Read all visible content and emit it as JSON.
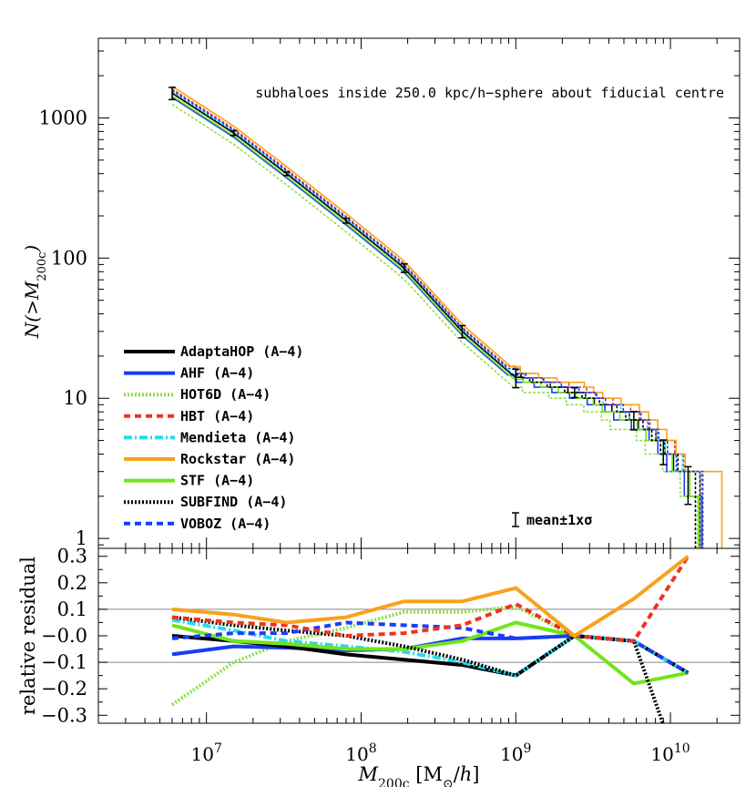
{
  "chart_data": [
    {
      "type": "line",
      "xlog": true,
      "ylog": true,
      "xlim": [
        2000000.0,
        28000000000.0
      ],
      "ylim": [
        0.85,
        3700
      ],
      "xticks": [
        {
          "v": 10000000.0,
          "b": "10",
          "e": "7"
        },
        {
          "v": 100000000.0,
          "b": "10",
          "e": "8"
        },
        {
          "v": 1000000000.0,
          "b": "10",
          "e": "9"
        },
        {
          "v": 10000000000.0,
          "b": "10",
          "e": "10"
        }
      ],
      "yticks": [
        {
          "v": 1,
          "label": "1"
        },
        {
          "v": 10,
          "label": "10"
        },
        {
          "v": 100,
          "label": "100"
        },
        {
          "v": 1000,
          "label": "1000"
        }
      ],
      "ylabel": "N(>M200c)",
      "annotation": "subhaloes inside 250.0 kpc/h−sphere about fiducial centre",
      "errorbar_key": "mean±1xσ",
      "legend_placement": "bottom-left",
      "series": [
        {
          "name": "AdaptaHOP (A−4)",
          "color": "#000000",
          "dash": "",
          "width": 4
        },
        {
          "name": "AHF (A−4)",
          "color": "#1a3df5",
          "dash": "",
          "width": 4
        },
        {
          "name": "HOT6D (A−4)",
          "color": "#8ce04a",
          "dash": "2,2",
          "width": 4
        },
        {
          "name": "HBT (A−4)",
          "color": "#f0321e",
          "dash": "7,5",
          "width": 4
        },
        {
          "name": "Mendieta (A−4)",
          "color": "#22dcec",
          "dash": "9,3,2,3",
          "width": 4
        },
        {
          "name": "Rockstar (A−4)",
          "color": "#f7a21c",
          "dash": "",
          "width": 4
        },
        {
          "name": "STF (A−4)",
          "color": "#72e41c",
          "dash": "",
          "width": 4
        },
        {
          "name": "SUBFIND (A−4)",
          "color": "#000000",
          "dash": "2,2",
          "width": 4
        },
        {
          "name": "VOBOZ (A−4)",
          "color": "#1a3df5",
          "dash": "7,5",
          "width": 4
        }
      ],
      "mean_curve": {
        "x": [
          6000000.0,
          15000000.0,
          33000000.0,
          80000000.0,
          190000000.0,
          450000000.0,
          1000000000.0,
          2400000000.0,
          5800000000.0,
          9000000000.0,
          13000000000.0
        ],
        "y": [
          1500,
          780,
          400,
          185,
          85,
          30,
          14,
          11,
          7,
          4.2,
          2.5
        ]
      },
      "curve_end_x": [
        15500000000.0,
        16000000000.0,
        15000000000.0,
        15800000000.0,
        15500000000.0,
        21500000000.0,
        15200000000.0,
        14500000000.0,
        16200000000.0
      ],
      "errorbars": {
        "x": [
          6000000.0,
          15000000.0,
          33000000.0,
          80000000.0,
          190000000.0,
          450000000.0,
          1000000000.0,
          2400000000.0,
          5800000000.0,
          9000000000.0,
          13000000000.0
        ],
        "y": [
          1500,
          780,
          400,
          185,
          85,
          30,
          14,
          11,
          7,
          4.2,
          2.5
        ],
        "frac": [
          0.1,
          0.04,
          0.03,
          0.04,
          0.07,
          0.1,
          0.15,
          0.08,
          0.15,
          0.2,
          0.3
        ]
      }
    },
    {
      "type": "line",
      "xlog": true,
      "xlim": [
        2000000.0,
        28000000000.0
      ],
      "ylim": [
        -0.33,
        0.33
      ],
      "ylabel": "relative residual",
      "xlabel": "M200c [M⊙/h]",
      "yticks": [
        {
          "v": 0.3,
          "label": "0.3"
        },
        {
          "v": 0.2,
          "label": "0.2"
        },
        {
          "v": 0.1,
          "label": "0.1"
        },
        {
          "v": 0.0,
          "label": "−0.0"
        },
        {
          "v": -0.1,
          "label": "−0.1"
        },
        {
          "v": -0.2,
          "label": "−0.2"
        },
        {
          "v": -0.3,
          "label": "−0.3"
        }
      ],
      "ref_lines": [
        0.1,
        -0.1
      ],
      "x": [
        6000000.0,
        15000000.0,
        33000000.0,
        80000000.0,
        190000000.0,
        450000000.0,
        1000000000.0,
        2400000000.0,
        5800000000.0,
        13000000000.0
      ],
      "series": [
        {
          "name": "HOT6D (A−4)",
          "values": [
            -0.26,
            -0.1,
            -0.02,
            0.03,
            0.09,
            0.09,
            0.11,
            0.0,
            -0.02,
            -0.14
          ]
        },
        {
          "name": "AHF (A−4)",
          "values": [
            -0.07,
            -0.04,
            -0.045,
            -0.055,
            -0.05,
            -0.01,
            -0.01,
            0.0,
            -0.02,
            -0.14
          ]
        },
        {
          "name": "AdaptaHOP (A−4)",
          "values": [
            0.0,
            -0.02,
            -0.04,
            -0.07,
            -0.09,
            -0.11,
            -0.15,
            0.0,
            -0.02,
            -0.14
          ]
        },
        {
          "name": "Mendieta (A−4)",
          "values": [
            0.06,
            0.02,
            -0.02,
            -0.04,
            -0.06,
            -0.1,
            -0.15,
            0.0,
            -0.02,
            -0.14
          ]
        },
        {
          "name": "STF (A−4)",
          "values": [
            0.04,
            -0.02,
            -0.03,
            -0.05,
            -0.05,
            -0.02,
            0.05,
            0.0,
            -0.18,
            -0.14
          ]
        },
        {
          "name": "SUBFIND (A−4)",
          "values": [
            0.07,
            0.04,
            0.02,
            0.0,
            -0.04,
            -0.09,
            -0.15,
            0.0,
            -0.02,
            -0.6
          ]
        },
        {
          "name": "VOBOZ (A−4)",
          "values": [
            -0.01,
            0.01,
            0.01,
            0.05,
            0.04,
            0.03,
            -0.01,
            0.0,
            -0.02,
            -0.14
          ]
        },
        {
          "name": "HBT (A−4)",
          "values": [
            0.07,
            0.05,
            0.04,
            0.0,
            0.01,
            0.04,
            0.12,
            0.0,
            -0.02,
            0.3
          ]
        },
        {
          "name": "Rockstar (A−4)",
          "values": [
            0.1,
            0.08,
            0.05,
            0.07,
            0.13,
            0.13,
            0.18,
            0.0,
            0.14,
            0.3
          ]
        }
      ]
    }
  ]
}
